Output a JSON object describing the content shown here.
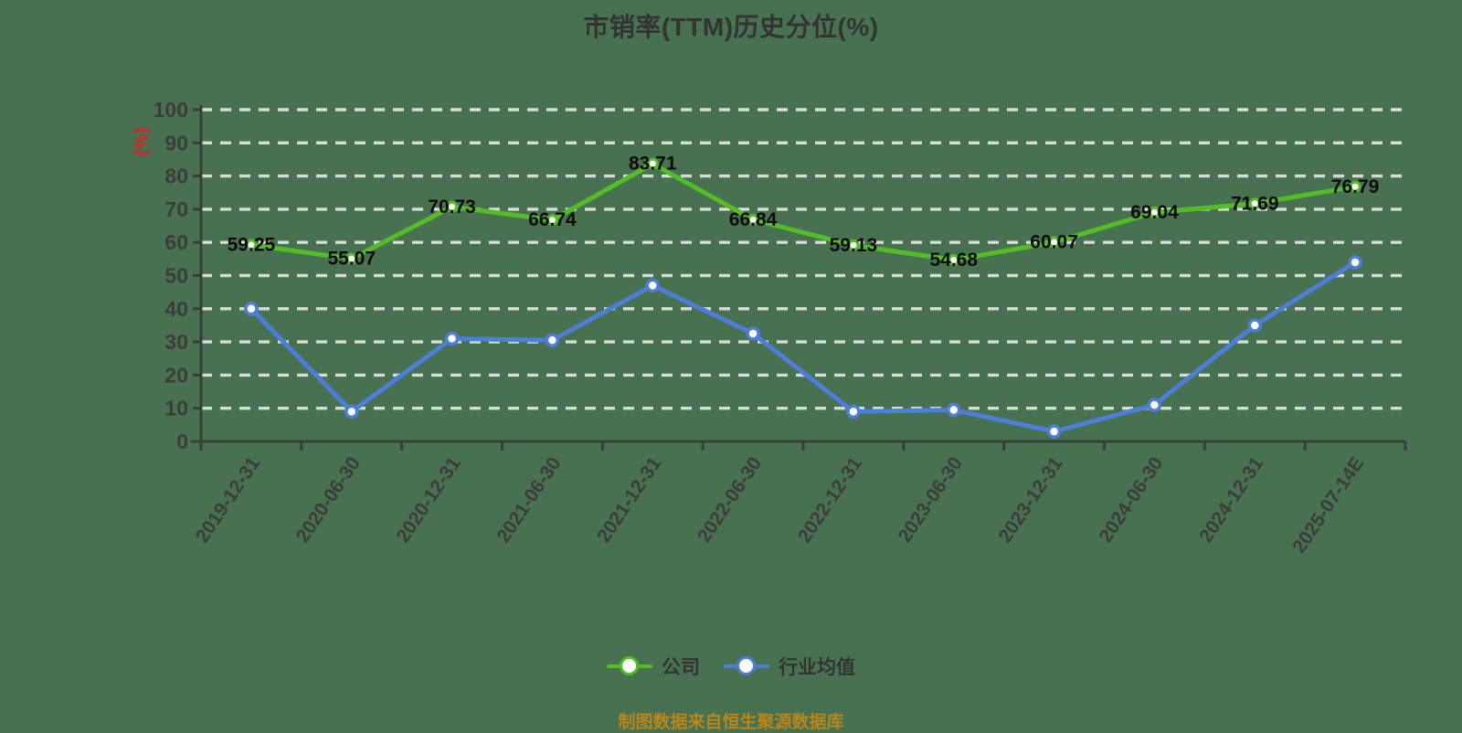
{
  "title": "市销率(TTM)历史分位(%)",
  "footer": "制图数据来自恒生聚源数据库",
  "legend": {
    "items": [
      {
        "label": "公司",
        "color": "#54bc28"
      },
      {
        "label": "行业均值",
        "color": "#4d7ed8"
      }
    ]
  },
  "colors": {
    "background": "#477150",
    "company_line": "#54bc28",
    "industry_line": "#4d7ed8",
    "gridline": "#d8ddd8",
    "axis": "#3a3e3a",
    "tick_label": "#3c3c3c",
    "value_label": "#0b0b0b",
    "title": "#333333",
    "y_unit": "#dd2222",
    "footer": "#b8861b",
    "marker_fill": "#ffffff"
  },
  "chart_data": {
    "type": "line",
    "title": "市销率(TTM)历史分位(%)",
    "xlabel": "",
    "ylabel": "(%)",
    "ylim": [
      0,
      100
    ],
    "y_ticks": [
      0,
      10,
      20,
      30,
      40,
      50,
      60,
      70,
      80,
      90,
      100
    ],
    "grid": "horizontal-dashed",
    "legend_position": "bottom-center",
    "categories": [
      "2019-12-31",
      "2020-06-30",
      "2020-12-31",
      "2021-06-30",
      "2021-12-31",
      "2022-06-30",
      "2022-12-31",
      "2023-06-30",
      "2023-12-31",
      "2024-06-30",
      "2024-12-31",
      "2025-07-14E"
    ],
    "series": [
      {
        "name": "公司",
        "color": "#54bc28",
        "point_labels": true,
        "values": [
          59.25,
          55.07,
          70.73,
          66.74,
          83.71,
          66.84,
          59.13,
          54.68,
          60.07,
          69.04,
          71.69,
          76.79
        ]
      },
      {
        "name": "行业均值",
        "color": "#4d7ed8",
        "point_labels": false,
        "values_estimated": true,
        "values": [
          40,
          9,
          31,
          30.5,
          47,
          32.5,
          9,
          9.5,
          3,
          11,
          35,
          54
        ]
      }
    ]
  }
}
